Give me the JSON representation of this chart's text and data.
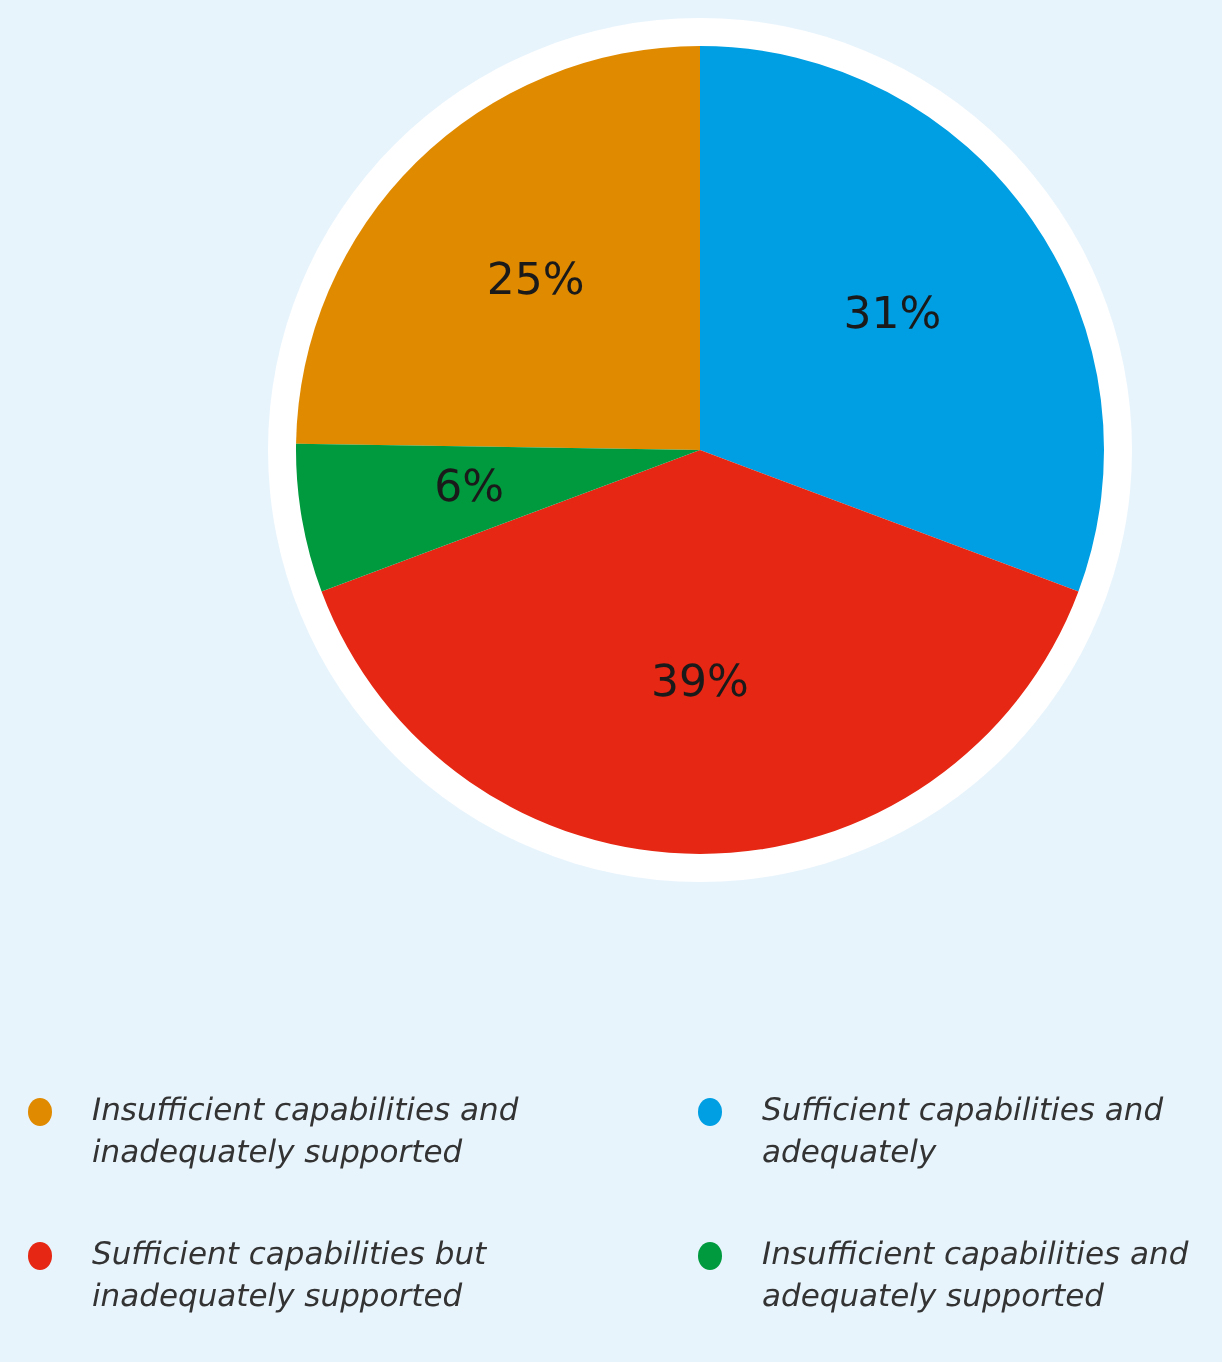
{
  "chart_data": {
    "type": "pie",
    "categories": [
      "Insufficient capabilities and inadequately supported",
      "Sufficient capabilities and adequately",
      "Sufficient capabilities but inadequately supported",
      "Insufficient capabilities and adequately supported"
    ],
    "values": [
      25,
      31,
      39,
      6
    ],
    "colors": [
      "#e08a00",
      "#009fe3",
      "#e52713",
      "#009a3e"
    ],
    "value_labels": [
      "25%",
      "31%",
      "39%",
      "6%"
    ],
    "legend": "bottom"
  }
}
